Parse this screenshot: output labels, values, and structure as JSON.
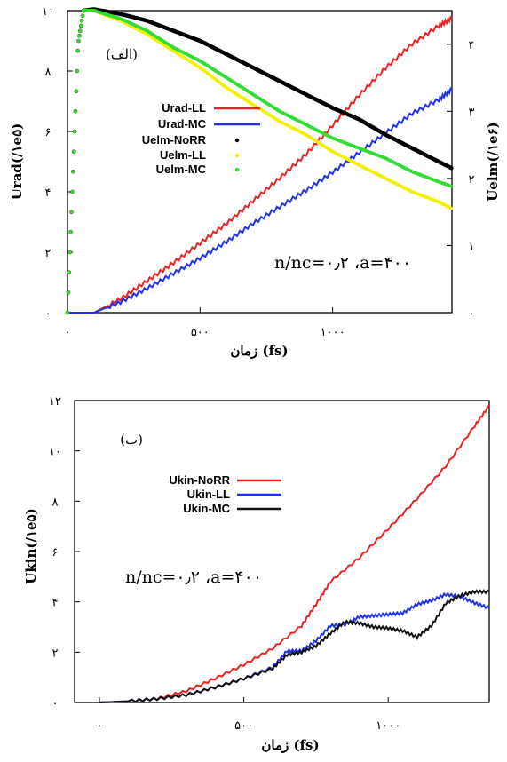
{
  "chart_data": [
    {
      "type": "line",
      "panel_label": "(الف)",
      "xlabel": "زمان (fs)",
      "ylabel_left": "Urad(/۱e۵)",
      "ylabel_right": "Uelm(/۱e۶)",
      "xlim": [
        0,
        1450
      ],
      "ylim_left": [
        0,
        10
      ],
      "ylim_right": [
        0,
        4.5
      ],
      "x_ticks": [
        {
          "value": 0,
          "label": "۰"
        },
        {
          "value": 500,
          "label": "۵۰۰"
        },
        {
          "value": 1000,
          "label": "۱۰۰۰"
        }
      ],
      "y_ticks_left": [
        {
          "value": 0,
          "label": "۰"
        },
        {
          "value": 2,
          "label": "۲"
        },
        {
          "value": 4,
          "label": "۴"
        },
        {
          "value": 6,
          "label": "۶"
        },
        {
          "value": 8,
          "label": "۸"
        },
        {
          "value": 10,
          "label": "۱۰"
        }
      ],
      "y_ticks_right": [
        {
          "value": 0,
          "label": "۰"
        },
        {
          "value": 1,
          "label": "۱"
        },
        {
          "value": 2,
          "label": "۲"
        },
        {
          "value": 3,
          "label": "۳"
        },
        {
          "value": 4,
          "label": "۴"
        }
      ],
      "annotation": "n/nc=۰٫۲ ،a=۴۰۰",
      "legend_position": "upper-middle",
      "series": [
        {
          "name": "Urad-LL",
          "axis": "left",
          "style": "line",
          "color": "#ee2222",
          "x": [
            0,
            100,
            200,
            300,
            400,
            500,
            600,
            700,
            800,
            900,
            1000,
            1100,
            1200,
            1300,
            1400,
            1450
          ],
          "y": [
            0,
            0,
            0.45,
            1.05,
            1.65,
            2.3,
            2.95,
            3.7,
            4.45,
            5.25,
            6.2,
            7.2,
            8.1,
            8.9,
            9.5,
            9.75
          ]
        },
        {
          "name": "Urad-MC",
          "axis": "left",
          "style": "line",
          "color": "#2233ee",
          "x": [
            0,
            100,
            200,
            300,
            400,
            500,
            600,
            700,
            800,
            900,
            1000,
            1100,
            1200,
            1300,
            1400,
            1450
          ],
          "y": [
            0,
            0,
            0.35,
            0.8,
            1.3,
            1.8,
            2.35,
            2.95,
            3.5,
            4.05,
            4.65,
            5.3,
            5.95,
            6.6,
            7.05,
            7.4
          ]
        },
        {
          "name": "Uelm-NoRR",
          "axis": "right",
          "style": "points",
          "color": "#000000",
          "x": [
            0,
            20,
            40,
            60,
            100,
            200,
            300,
            400,
            500,
            600,
            700,
            800,
            900,
            1000,
            1100,
            1200,
            1300,
            1400,
            1450
          ],
          "y": [
            0,
            2.0,
            4.0,
            4.5,
            4.52,
            4.45,
            4.35,
            4.2,
            4.05,
            3.85,
            3.65,
            3.45,
            3.25,
            3.05,
            2.88,
            2.65,
            2.45,
            2.25,
            2.15
          ]
        },
        {
          "name": "Uelm-LL",
          "axis": "right",
          "style": "points",
          "color": "#f2f200",
          "x": [
            0,
            20,
            40,
            60,
            100,
            200,
            300,
            400,
            500,
            600,
            700,
            800,
            900,
            1000,
            1100,
            1200,
            1300,
            1400,
            1450
          ],
          "y": [
            0,
            2.0,
            4.0,
            4.5,
            4.5,
            4.35,
            4.15,
            3.9,
            3.65,
            3.35,
            3.1,
            2.85,
            2.65,
            2.4,
            2.2,
            2.0,
            1.8,
            1.65,
            1.55
          ]
        },
        {
          "name": "Uelm-MC",
          "axis": "right",
          "style": "points",
          "color": "#33dd33",
          "x": [
            0,
            20,
            40,
            60,
            100,
            200,
            300,
            400,
            500,
            600,
            700,
            800,
            900,
            1000,
            1100,
            1200,
            1300,
            1400,
            1450
          ],
          "y": [
            0,
            2.0,
            4.0,
            4.5,
            4.5,
            4.38,
            4.2,
            3.95,
            3.75,
            3.5,
            3.25,
            3.0,
            2.8,
            2.6,
            2.45,
            2.3,
            2.1,
            1.95,
            1.88
          ]
        }
      ]
    },
    {
      "type": "line",
      "panel_label": "(ب)",
      "xlabel": "زمان (fs)",
      "ylabel": "Ukin(/۱e۵)",
      "xlim": [
        0,
        1350
      ],
      "ylim": [
        0,
        12
      ],
      "x_ticks": [
        {
          "value": 0,
          "label": "۰"
        },
        {
          "value": 500,
          "label": "۵۰۰"
        },
        {
          "value": 1000,
          "label": "۱۰۰۰"
        }
      ],
      "y_ticks": [
        {
          "value": 0,
          "label": "۰"
        },
        {
          "value": 2,
          "label": "۲"
        },
        {
          "value": 4,
          "label": "۴"
        },
        {
          "value": 6,
          "label": "۶"
        },
        {
          "value": 8,
          "label": "۸"
        },
        {
          "value": 10,
          "label": "۱۰"
        },
        {
          "value": 12,
          "label": "۱۲"
        }
      ],
      "annotation": "n/nc=۰٫۲ ،a=۴۰۰",
      "legend_position": "upper-middle",
      "series": [
        {
          "name": "Ukin-NoRR",
          "style": "line",
          "color": "#ee2222",
          "x": [
            0,
            100,
            200,
            300,
            400,
            500,
            600,
            700,
            750,
            800,
            900,
            1000,
            1100,
            1200,
            1300,
            1350
          ],
          "y": [
            0,
            0.05,
            0.15,
            0.45,
            0.95,
            1.5,
            2.15,
            3.05,
            3.9,
            4.8,
            5.75,
            6.9,
            8.1,
            9.4,
            11.0,
            11.8
          ]
        },
        {
          "name": "Ukin-LL",
          "style": "line",
          "color": "#2233ee",
          "x": [
            0,
            100,
            200,
            300,
            400,
            500,
            600,
            650,
            700,
            750,
            800,
            850,
            900,
            950,
            1000,
            1050,
            1100,
            1150,
            1200,
            1250,
            1300,
            1350
          ],
          "y": [
            0,
            0.05,
            0.15,
            0.3,
            0.6,
            0.95,
            1.4,
            2.05,
            2.05,
            2.45,
            3.05,
            3.1,
            3.4,
            3.45,
            3.5,
            3.55,
            3.9,
            4.05,
            4.3,
            4.2,
            3.95,
            3.75
          ]
        },
        {
          "name": "Ukin-MC",
          "style": "line",
          "color": "#111111",
          "x": [
            0,
            100,
            200,
            300,
            400,
            500,
            600,
            650,
            700,
            750,
            800,
            850,
            900,
            950,
            1000,
            1050,
            1100,
            1150,
            1200,
            1250,
            1300,
            1350
          ],
          "y": [
            0,
            0.05,
            0.15,
            0.3,
            0.6,
            0.95,
            1.35,
            1.9,
            2.0,
            2.25,
            2.75,
            3.2,
            3.15,
            3.0,
            2.95,
            2.85,
            2.6,
            3.05,
            3.95,
            4.25,
            4.4,
            4.4
          ]
        }
      ]
    }
  ]
}
